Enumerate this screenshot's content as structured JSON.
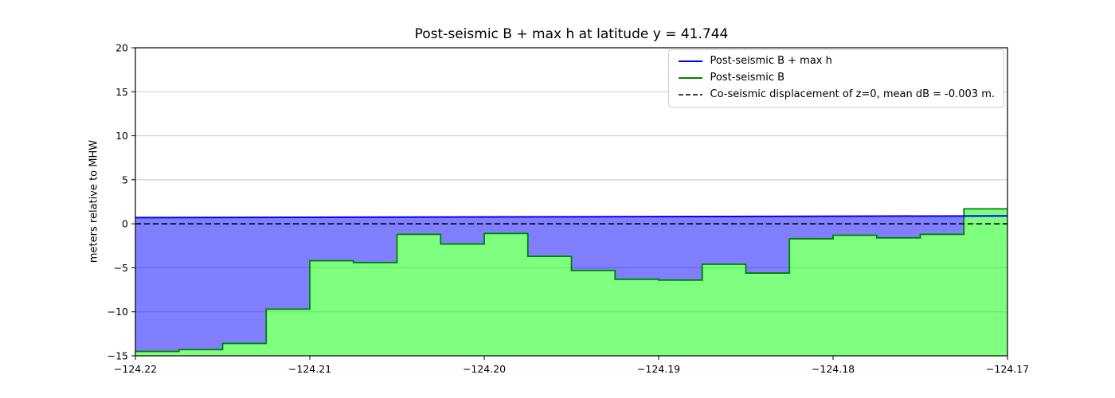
{
  "chart_data": {
    "type": "area",
    "title": "Post-seismic B + max h at latitude y = 41.744",
    "xlabel": "",
    "ylabel": "meters relative to MHW",
    "xlim": [
      -124.22,
      -124.17
    ],
    "ylim": [
      -15,
      20
    ],
    "xticks": {
      "values": [
        -124.22,
        -124.21,
        -124.2,
        -124.19,
        -124.18,
        -124.17
      ],
      "labels": [
        "−124.22",
        "−124.21",
        "−124.20",
        "−124.19",
        "−124.18",
        "−124.17"
      ]
    },
    "yticks": {
      "values": [
        -15,
        -10,
        -5,
        0,
        5,
        10,
        15,
        20
      ],
      "labels": [
        "−15",
        "−10",
        "−5",
        "0",
        "5",
        "10",
        "15",
        "20"
      ]
    },
    "grid": {
      "horizontal": true,
      "vertical": false,
      "color": "#cccccc"
    },
    "series": [
      {
        "name": "Post-seismic B + max h",
        "type": "line",
        "color": "#0000ff",
        "x": [
          -124.22,
          -124.17
        ],
        "y": [
          0.7,
          0.9
        ],
        "fill": "rgba(0,0,255,0.5)"
      },
      {
        "name": "Post-seismic B",
        "type": "step",
        "color": "#008000",
        "fill": "rgba(0,255,0,0.5)",
        "fill_baseline": -15,
        "edges": [
          -124.22,
          -124.2175,
          -124.215,
          -124.2125,
          -124.21,
          -124.2075,
          -124.205,
          -124.2025,
          -124.2,
          -124.1975,
          -124.195,
          -124.1925,
          -124.19,
          -124.1875,
          -124.185,
          -124.1825,
          -124.18,
          -124.1775,
          -124.175,
          -124.1725,
          -124.17
        ],
        "values": [
          -14.5,
          -14.3,
          -13.6,
          -9.7,
          -4.2,
          -4.4,
          -1.2,
          -2.3,
          -1.1,
          -3.7,
          -5.3,
          -6.3,
          -6.4,
          -4.6,
          -5.6,
          -1.7,
          -1.3,
          -1.6,
          -1.2,
          1.7
        ]
      },
      {
        "name": "Co-seismic displacement of z=0, mean dB = -0.003 m.",
        "type": "hline",
        "color": "#000000",
        "dash": true,
        "y": -0.003
      }
    ],
    "legend": {
      "position": "upper right",
      "entries": [
        {
          "label": "Post-seismic B + max h",
          "color": "#0000ff",
          "dash": false
        },
        {
          "label": "Post-seismic B",
          "color": "#008000",
          "dash": false
        },
        {
          "label": "Co-seismic displacement of z=0, mean dB = -0.003 m.",
          "color": "#000000",
          "dash": true
        }
      ]
    }
  }
}
